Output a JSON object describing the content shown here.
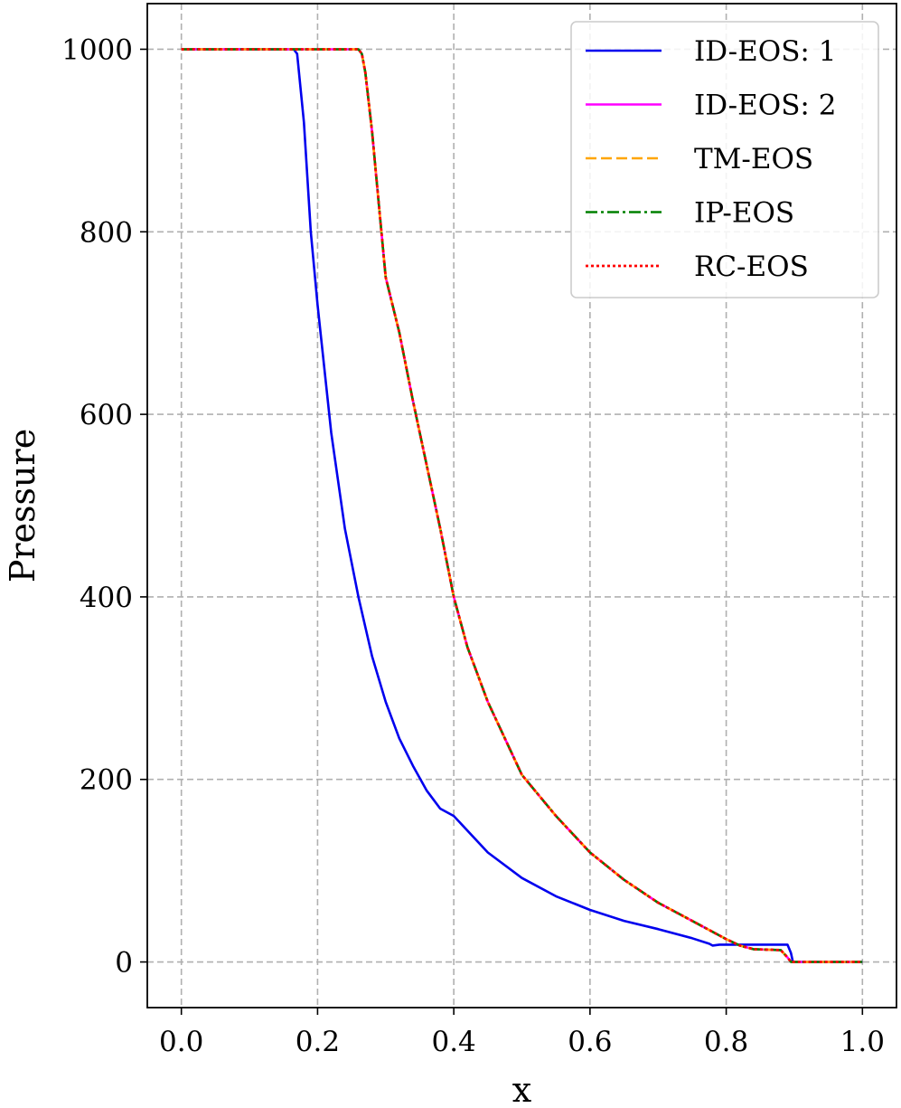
{
  "chart_data": {
    "type": "line",
    "xlabel": "x",
    "ylabel": "Pressure",
    "xlim": [
      -0.05,
      1.05
    ],
    "ylim": [
      -50,
      1050
    ],
    "xticks": [
      0.0,
      0.2,
      0.4,
      0.6,
      0.8,
      1.0
    ],
    "xtick_labels": [
      "0.0",
      "0.2",
      "0.4",
      "0.6",
      "0.8",
      "1.0"
    ],
    "yticks": [
      0,
      200,
      400,
      600,
      800,
      1000
    ],
    "ytick_labels": [
      "0",
      "200",
      "400",
      "600",
      "800",
      "1000"
    ],
    "grid": true,
    "legend_position": "top-right",
    "series": [
      {
        "name": "ID-EOS: 1",
        "color": "#0000ee",
        "style": "solid",
        "points": [
          [
            0.0,
            1000
          ],
          [
            0.165,
            1000
          ],
          [
            0.17,
            995
          ],
          [
            0.18,
            920
          ],
          [
            0.19,
            800
          ],
          [
            0.2,
            720
          ],
          [
            0.22,
            580
          ],
          [
            0.24,
            475
          ],
          [
            0.26,
            400
          ],
          [
            0.28,
            335
          ],
          [
            0.3,
            285
          ],
          [
            0.32,
            245
          ],
          [
            0.34,
            215
          ],
          [
            0.36,
            188
          ],
          [
            0.38,
            168
          ],
          [
            0.4,
            160
          ],
          [
            0.45,
            120
          ],
          [
            0.5,
            92
          ],
          [
            0.55,
            72
          ],
          [
            0.6,
            57
          ],
          [
            0.65,
            45
          ],
          [
            0.7,
            36
          ],
          [
            0.75,
            26
          ],
          [
            0.775,
            20
          ],
          [
            0.78,
            18
          ],
          [
            0.79,
            19
          ],
          [
            0.81,
            19
          ],
          [
            0.85,
            19
          ],
          [
            0.89,
            19
          ],
          [
            0.895,
            10
          ],
          [
            0.898,
            0
          ],
          [
            1.0,
            0
          ]
        ]
      },
      {
        "name": "ID-EOS: 2",
        "color": "#ff00ff",
        "style": "solid",
        "points": [
          [
            0.0,
            1000
          ],
          [
            0.26,
            1000
          ],
          [
            0.265,
            995
          ],
          [
            0.27,
            975
          ],
          [
            0.28,
            910
          ],
          [
            0.29,
            830
          ],
          [
            0.3,
            750
          ],
          [
            0.32,
            690
          ],
          [
            0.34,
            615
          ],
          [
            0.36,
            545
          ],
          [
            0.38,
            475
          ],
          [
            0.4,
            400
          ],
          [
            0.42,
            345
          ],
          [
            0.45,
            285
          ],
          [
            0.5,
            205
          ],
          [
            0.55,
            160
          ],
          [
            0.6,
            120
          ],
          [
            0.65,
            90
          ],
          [
            0.7,
            65
          ],
          [
            0.75,
            45
          ],
          [
            0.8,
            25
          ],
          [
            0.82,
            18
          ],
          [
            0.84,
            14
          ],
          [
            0.88,
            13
          ],
          [
            0.89,
            5
          ],
          [
            0.895,
            0
          ],
          [
            1.0,
            0
          ]
        ]
      },
      {
        "name": "TM-EOS",
        "color": "#ffa500",
        "style": "dashed",
        "points": [
          [
            0.0,
            1000
          ],
          [
            0.26,
            1000
          ],
          [
            0.265,
            995
          ],
          [
            0.27,
            975
          ],
          [
            0.28,
            910
          ],
          [
            0.29,
            830
          ],
          [
            0.3,
            750
          ],
          [
            0.32,
            690
          ],
          [
            0.34,
            615
          ],
          [
            0.36,
            545
          ],
          [
            0.38,
            475
          ],
          [
            0.4,
            400
          ],
          [
            0.42,
            345
          ],
          [
            0.45,
            285
          ],
          [
            0.5,
            205
          ],
          [
            0.55,
            160
          ],
          [
            0.6,
            120
          ],
          [
            0.65,
            90
          ],
          [
            0.7,
            65
          ],
          [
            0.75,
            45
          ],
          [
            0.8,
            25
          ],
          [
            0.82,
            18
          ],
          [
            0.84,
            14
          ],
          [
            0.88,
            13
          ],
          [
            0.89,
            5
          ],
          [
            0.895,
            0
          ],
          [
            1.0,
            0
          ]
        ]
      },
      {
        "name": "IP-EOS",
        "color": "#008000",
        "style": "dashdot",
        "points": [
          [
            0.0,
            1000
          ],
          [
            0.26,
            1000
          ],
          [
            0.265,
            995
          ],
          [
            0.27,
            975
          ],
          [
            0.28,
            910
          ],
          [
            0.29,
            830
          ],
          [
            0.3,
            750
          ],
          [
            0.32,
            690
          ],
          [
            0.34,
            615
          ],
          [
            0.36,
            545
          ],
          [
            0.38,
            475
          ],
          [
            0.4,
            400
          ],
          [
            0.42,
            345
          ],
          [
            0.45,
            285
          ],
          [
            0.5,
            205
          ],
          [
            0.55,
            160
          ],
          [
            0.6,
            120
          ],
          [
            0.65,
            90
          ],
          [
            0.7,
            65
          ],
          [
            0.75,
            45
          ],
          [
            0.8,
            25
          ],
          [
            0.82,
            18
          ],
          [
            0.84,
            14
          ],
          [
            0.88,
            13
          ],
          [
            0.89,
            5
          ],
          [
            0.895,
            0
          ],
          [
            1.0,
            0
          ]
        ]
      },
      {
        "name": "RC-EOS",
        "color": "#ff0000",
        "style": "dotted",
        "points": [
          [
            0.0,
            1000
          ],
          [
            0.26,
            1000
          ],
          [
            0.265,
            995
          ],
          [
            0.27,
            975
          ],
          [
            0.28,
            910
          ],
          [
            0.29,
            830
          ],
          [
            0.3,
            750
          ],
          [
            0.32,
            690
          ],
          [
            0.34,
            615
          ],
          [
            0.36,
            545
          ],
          [
            0.38,
            475
          ],
          [
            0.4,
            400
          ],
          [
            0.42,
            345
          ],
          [
            0.45,
            285
          ],
          [
            0.5,
            205
          ],
          [
            0.55,
            160
          ],
          [
            0.6,
            120
          ],
          [
            0.65,
            90
          ],
          [
            0.7,
            65
          ],
          [
            0.75,
            45
          ],
          [
            0.8,
            25
          ],
          [
            0.82,
            18
          ],
          [
            0.84,
            14
          ],
          [
            0.88,
            13
          ],
          [
            0.89,
            5
          ],
          [
            0.895,
            0
          ],
          [
            1.0,
            0
          ]
        ]
      }
    ]
  }
}
